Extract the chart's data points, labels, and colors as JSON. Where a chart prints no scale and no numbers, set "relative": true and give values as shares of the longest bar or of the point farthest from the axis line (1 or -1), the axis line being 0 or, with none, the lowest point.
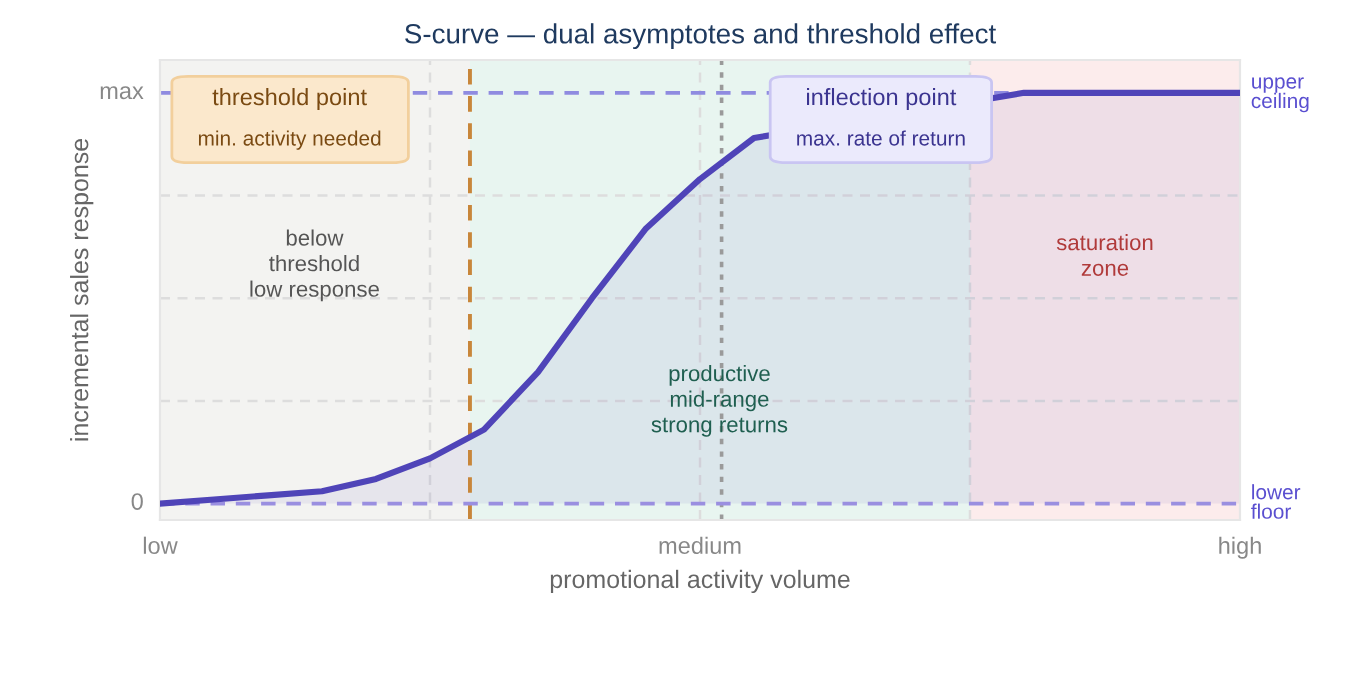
{
  "chart_data": {
    "type": "area",
    "title": "S-curve — dual asymptotes and threshold effect",
    "xlabel": "promotional activity volume",
    "ylabel": "incremental sales response",
    "relative": true,
    "categories": [
      "low",
      null,
      null,
      null,
      null,
      null,
      null,
      null,
      null,
      null,
      "medium",
      null,
      null,
      null,
      null,
      null,
      null,
      null,
      null,
      null,
      "high"
    ],
    "series": [
      {
        "color": "#4f44b8",
        "values": [
          0,
          0.01,
          0.02,
          0.03,
          0.06,
          0.11,
          0.18,
          0.32,
          0.5,
          0.67,
          0.79,
          0.89,
          null,
          null,
          null,
          null,
          1,
          1,
          1,
          1,
          1
        ]
      }
    ],
    "grid": true,
    "legend": false,
    "marker": "none",
    "line_style": "solid",
    "ref_lines": [
      {
        "axis": "y",
        "value": 1,
        "label": "upper\nceiling",
        "color": "#8f8be0",
        "line_style": "dashed"
      },
      {
        "axis": "y",
        "value": 0,
        "label": "lower\nfloor",
        "color": "#9a8fe0",
        "line_style": "dashed"
      }
    ],
    "annotations": [
      "threshold point",
      "min. activity needed",
      "inflection point",
      "max. rate of return",
      "below\nthreshold\nlow response",
      "productive\nmid-range\nstrong returns",
      "saturation\nzone",
      "max",
      "0"
    ]
  }
}
